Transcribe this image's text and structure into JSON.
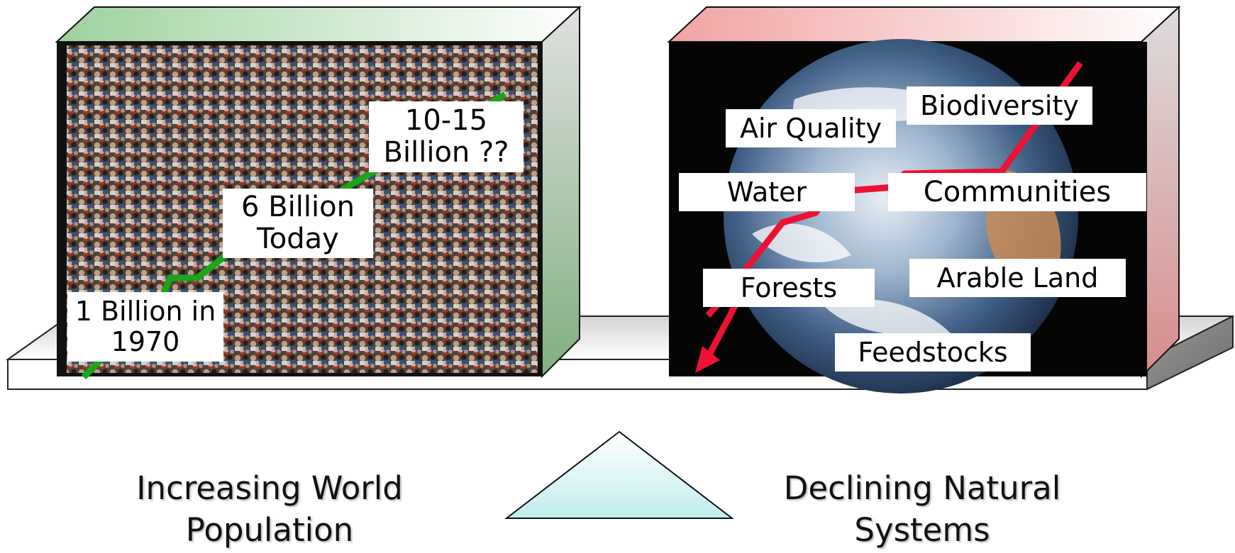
{
  "left_box": {
    "label_1970": "1 Billion in 1970",
    "label_today_line1": "6 Billion",
    "label_today_line2": "Today",
    "label_future_line1": "10-15",
    "label_future_line2": "Billion ??",
    "color_front": "#3a6a3a",
    "color_top": "#9ed29e",
    "trend_color": "#1aa51a"
  },
  "right_box": {
    "labels": {
      "biodiversity": "Biodiversity",
      "air_quality": "Air Quality",
      "water": "Water",
      "communities": "Communities",
      "forests": "Forests",
      "arable_land": "Arable Land",
      "feedstocks": "Feedstocks"
    },
    "color_top": "#f2a3a3",
    "trend_color": "#ee1133"
  },
  "captions": {
    "left_line1": "Increasing World",
    "left_line2": "Population",
    "right_line1": "Declining Natural",
    "right_line2": "Systems"
  },
  "fulcrum_color": "#d8f6f6"
}
